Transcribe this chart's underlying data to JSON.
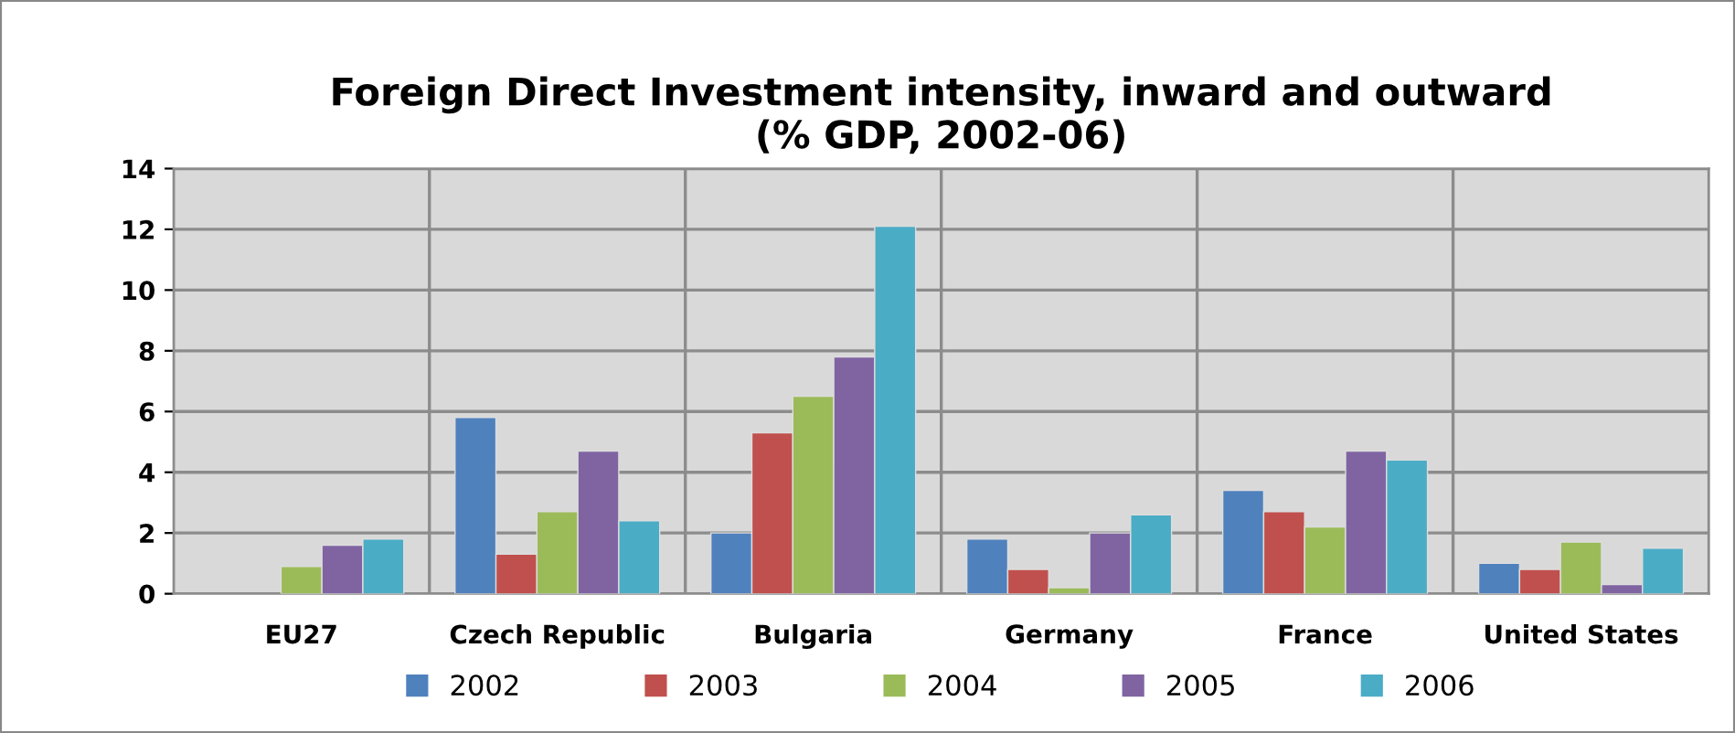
{
  "chart_data": {
    "type": "bar",
    "title": "Foreign Direct Investment intensity, inward and outward\n(% GDP, 2002-06)",
    "categories": [
      "EU27",
      "Czech Republic",
      "Bulgaria",
      "Germany",
      "France",
      "United States"
    ],
    "series": [
      {
        "name": "2002",
        "color": "#4f81bd",
        "values": [
          null,
          5.8,
          2.0,
          1.8,
          3.4,
          1.0
        ]
      },
      {
        "name": "2003",
        "color": "#c0504d",
        "values": [
          null,
          1.3,
          5.3,
          0.8,
          2.7,
          0.8
        ]
      },
      {
        "name": "2004",
        "color": "#9bbb59",
        "values": [
          0.9,
          2.7,
          6.5,
          0.2,
          2.2,
          1.7
        ]
      },
      {
        "name": "2005",
        "color": "#8064a2",
        "values": [
          1.6,
          4.7,
          7.8,
          2.0,
          4.7,
          0.3
        ]
      },
      {
        "name": "2006",
        "color": "#4bacc6",
        "values": [
          1.8,
          2.4,
          12.1,
          2.6,
          4.4,
          1.5
        ]
      }
    ],
    "ylim": [
      0,
      14
    ],
    "yticks": [
      0,
      2,
      4,
      6,
      8,
      10,
      12,
      14
    ],
    "grid": true,
    "legend": "bottom"
  }
}
